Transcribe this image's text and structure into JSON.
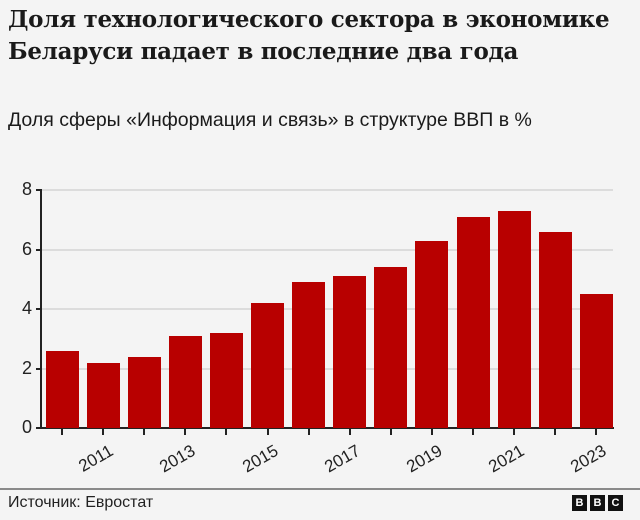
{
  "header": {
    "title": "Доля технологического сектора в экономике Беларуси падает в последние два года",
    "subtitle": "Доля сферы «Информация и связь» в структуре ВВП в %"
  },
  "footer": {
    "source": "Источник: Евростат",
    "logo_letters": [
      "B",
      "B",
      "C"
    ]
  },
  "colors": {
    "bar": "#b80000",
    "background": "#f4f4f4",
    "gridline": "#dcdcdc",
    "axis": "#222222"
  },
  "chart_data": {
    "type": "bar",
    "title": "Доля технологического сектора в экономике Беларуси падает в последние два года",
    "subtitle": "Доля сферы «Информация и связь» в структуре ВВП в %",
    "xlabel": "",
    "ylabel": "",
    "categories": [
      "2010",
      "2011",
      "2012",
      "2013",
      "2014",
      "2015",
      "2016",
      "2017",
      "2018",
      "2019",
      "2020",
      "2021",
      "2022",
      "2023"
    ],
    "values": [
      2.6,
      2.2,
      2.4,
      3.1,
      3.2,
      4.2,
      4.9,
      5.1,
      5.4,
      6.3,
      7.1,
      7.3,
      6.6,
      4.5
    ],
    "x_tick_labels": [
      "2011",
      "2013",
      "2015",
      "2017",
      "2019",
      "2021",
      "2023"
    ],
    "y_ticks": [
      0,
      2,
      4,
      6,
      8
    ],
    "ylim": [
      0,
      8
    ],
    "grid": true,
    "legend": null,
    "source": "Источник: Евростат"
  }
}
